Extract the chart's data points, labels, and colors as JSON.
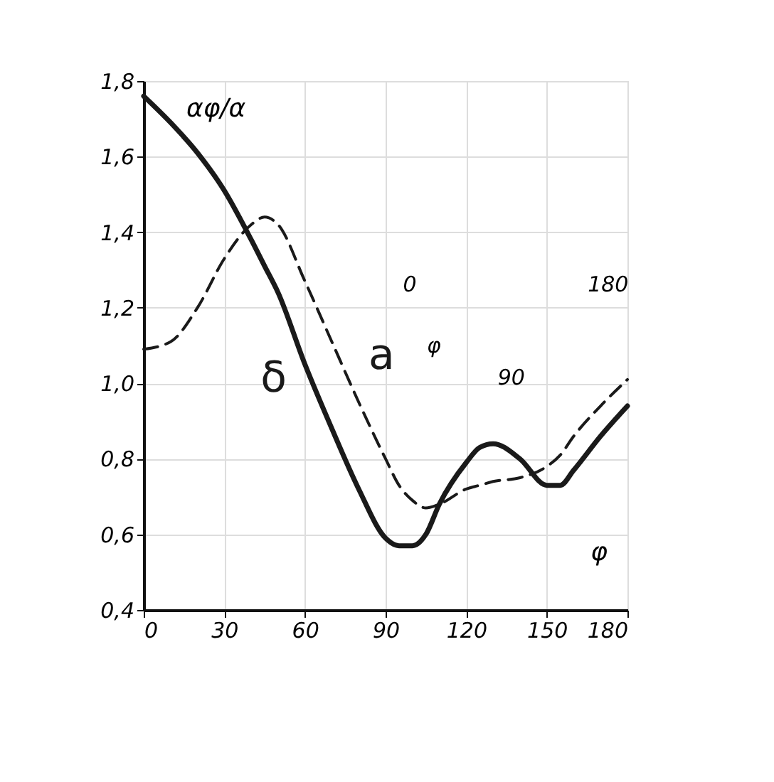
{
  "chart_data": {
    "type": "line",
    "xlabel": "φ",
    "ylabel": "αφ/α",
    "x": [
      0,
      10,
      20,
      30,
      40,
      45,
      50,
      60,
      70,
      80,
      90,
      95,
      100,
      105,
      110,
      120,
      125,
      130,
      140,
      150,
      155,
      160,
      170,
      180
    ],
    "series": [
      {
        "name": "δ",
        "color": "#1a1a1a",
        "line_style": "solid",
        "values": [
          1.76,
          1.69,
          1.61,
          1.51,
          1.38,
          1.31,
          1.24,
          1.05,
          0.88,
          0.72,
          0.59,
          0.57,
          0.57,
          0.6,
          0.68,
          0.79,
          0.83,
          0.84,
          0.8,
          0.73,
          0.73,
          0.77,
          0.86,
          0.94
        ]
      },
      {
        "name": "a",
        "color": "#1a1a1a",
        "line_style": "dashed",
        "values": [
          1.09,
          1.11,
          1.2,
          1.33,
          1.42,
          1.44,
          1.42,
          1.27,
          1.11,
          0.95,
          0.8,
          0.73,
          0.69,
          0.67,
          0.68,
          0.72,
          0.73,
          0.74,
          0.75,
          0.78,
          0.81,
          0.86,
          0.94,
          1.01
        ]
      }
    ],
    "annotations": [
      "0",
      "180",
      "90",
      "φ"
    ],
    "xlim": [
      0,
      180
    ],
    "xticks": [
      0,
      30,
      60,
      90,
      120,
      150,
      180
    ],
    "ylim": [
      0.4,
      1.8
    ],
    "yticks": [
      {
        "value": 0.4,
        "label": "0,4"
      },
      {
        "value": 0.6,
        "label": "0,6"
      },
      {
        "value": 0.8,
        "label": "0,8"
      },
      {
        "value": 1.0,
        "label": "1,0"
      },
      {
        "value": 1.2,
        "label": "1,2"
      },
      {
        "value": 1.4,
        "label": "1,4"
      },
      {
        "value": 1.6,
        "label": "1,6"
      },
      {
        "value": 1.8,
        "label": "1,8"
      }
    ],
    "grid": true,
    "marker": "none"
  }
}
